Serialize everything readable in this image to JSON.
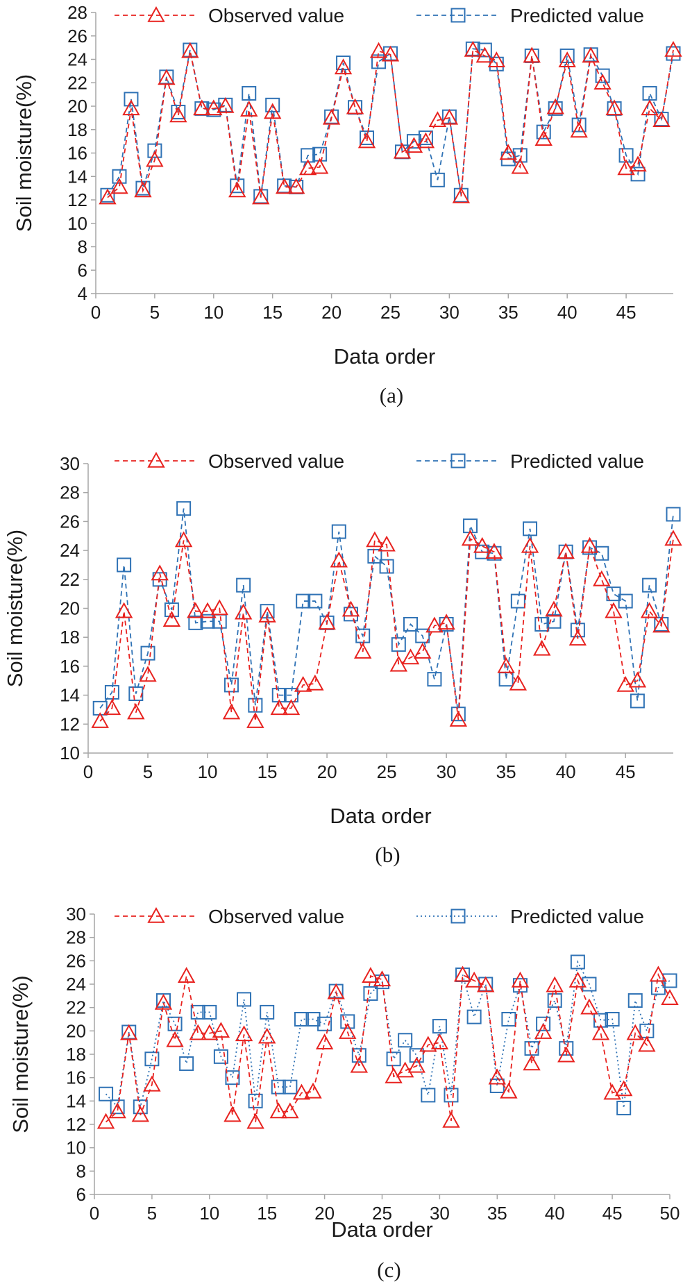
{
  "colors": {
    "observed": "#e8221f",
    "predicted": "#2f72b5",
    "axis": "#a6a6a6",
    "text": "#1a1a1a"
  },
  "chart_data": [
    {
      "panel": "(a)",
      "type": "line",
      "xlabel": "Data order",
      "ylabel": "Soil moisture(%)",
      "xlim": [
        0,
        49
      ],
      "ylim": [
        4,
        28
      ],
      "xticks": [
        0,
        5,
        10,
        15,
        20,
        25,
        30,
        35,
        40,
        45
      ],
      "yticks": [
        4,
        6,
        8,
        10,
        12,
        14,
        16,
        18,
        20,
        22,
        24,
        26,
        28
      ],
      "legend": "top",
      "x": [
        1,
        2,
        3,
        4,
        5,
        6,
        7,
        8,
        9,
        10,
        11,
        12,
        13,
        14,
        15,
        16,
        17,
        18,
        19,
        20,
        21,
        22,
        23,
        24,
        25,
        26,
        27,
        28,
        29,
        30,
        31,
        32,
        33,
        34,
        35,
        36,
        37,
        38,
        39,
        40,
        41,
        42,
        43,
        44,
        45,
        46,
        47,
        48,
        49
      ],
      "series": [
        {
          "name": "Observed value",
          "marker": "triangle",
          "line": "dashed",
          "values": [
            12.2,
            13.1,
            19.8,
            12.8,
            15.4,
            22.4,
            19.2,
            24.7,
            19.8,
            19.8,
            20.0,
            12.8,
            19.7,
            12.2,
            19.5,
            13.1,
            13.1,
            14.7,
            14.8,
            19.0,
            23.3,
            19.9,
            17.0,
            24.7,
            24.4,
            16.1,
            16.6,
            17.0,
            18.8,
            19.0,
            12.3,
            24.8,
            24.3,
            23.9,
            16.0,
            14.8,
            24.3,
            17.2,
            19.9,
            23.9,
            17.9,
            24.3,
            22.0,
            19.8,
            14.7,
            15.0,
            19.8,
            18.8,
            24.8
          ]
        },
        {
          "name": "Predicted value",
          "marker": "square",
          "line": "dashed",
          "values": [
            12.4,
            14.0,
            20.6,
            13.0,
            16.2,
            22.5,
            19.5,
            24.8,
            19.8,
            19.7,
            20.1,
            13.2,
            21.1,
            12.3,
            20.1,
            13.2,
            13.1,
            15.8,
            15.9,
            19.1,
            23.7,
            19.9,
            17.3,
            23.8,
            24.5,
            16.1,
            17.0,
            17.3,
            13.7,
            19.1,
            12.4,
            24.9,
            24.8,
            23.6,
            15.5,
            15.8,
            24.3,
            17.8,
            19.8,
            24.3,
            18.4,
            24.4,
            22.6,
            19.8,
            15.8,
            14.2,
            21.1,
            18.9,
            24.5
          ]
        }
      ]
    },
    {
      "panel": "(b)",
      "type": "line",
      "xlabel": "Data order",
      "ylabel": "Soil moisture(%)",
      "xlim": [
        0,
        49
      ],
      "ylim": [
        10,
        30
      ],
      "xticks": [
        0,
        5,
        10,
        15,
        20,
        25,
        30,
        35,
        40,
        45
      ],
      "yticks": [
        10,
        12,
        14,
        16,
        18,
        20,
        22,
        24,
        26,
        28,
        30
      ],
      "legend": "top",
      "x": [
        1,
        2,
        3,
        4,
        5,
        6,
        7,
        8,
        9,
        10,
        11,
        12,
        13,
        14,
        15,
        16,
        17,
        18,
        19,
        20,
        21,
        22,
        23,
        24,
        25,
        26,
        27,
        28,
        29,
        30,
        31,
        32,
        33,
        34,
        35,
        36,
        37,
        38,
        39,
        40,
        41,
        42,
        43,
        44,
        45,
        46,
        47,
        48,
        49
      ],
      "series": [
        {
          "name": "Observed value",
          "marker": "triangle",
          "line": "dashed",
          "values": [
            12.2,
            13.1,
            19.8,
            12.8,
            15.4,
            22.4,
            19.2,
            24.7,
            19.8,
            19.8,
            20.0,
            12.8,
            19.7,
            12.2,
            19.5,
            13.1,
            13.1,
            14.7,
            14.8,
            19.0,
            23.3,
            19.9,
            17.0,
            24.7,
            24.4,
            16.1,
            16.6,
            17.0,
            18.8,
            19.0,
            12.3,
            24.8,
            24.3,
            23.9,
            16.0,
            14.8,
            24.3,
            17.2,
            19.9,
            23.9,
            17.9,
            24.3,
            22.0,
            19.8,
            14.7,
            15.0,
            19.8,
            18.8,
            24.8
          ]
        },
        {
          "name": "Predicted value",
          "marker": "square",
          "line": "dashed",
          "values": [
            13.1,
            14.2,
            23.0,
            14.1,
            16.9,
            22.0,
            19.9,
            26.9,
            19.0,
            19.1,
            19.1,
            14.7,
            21.6,
            13.3,
            19.8,
            14.0,
            14.0,
            20.5,
            20.5,
            19.0,
            25.3,
            19.6,
            18.1,
            23.6,
            22.9,
            17.5,
            18.9,
            18.1,
            15.1,
            18.9,
            12.7,
            25.7,
            23.9,
            23.8,
            15.1,
            20.5,
            25.5,
            18.9,
            19.1,
            23.9,
            18.5,
            24.2,
            23.8,
            21.0,
            20.5,
            13.6,
            21.6,
            18.9,
            26.5
          ]
        }
      ]
    },
    {
      "panel": "(c)",
      "type": "line",
      "xlabel": "Data order",
      "ylabel": "Soil moisture(%)",
      "xlim": [
        0,
        50
      ],
      "ylim": [
        6,
        30
      ],
      "xticks": [
        0,
        5,
        10,
        15,
        20,
        25,
        30,
        35,
        40,
        45,
        50
      ],
      "yticks": [
        6,
        8,
        10,
        12,
        14,
        16,
        18,
        20,
        22,
        24,
        26,
        28,
        30
      ],
      "legend": "top",
      "x": [
        1,
        2,
        3,
        4,
        5,
        6,
        7,
        8,
        9,
        10,
        11,
        12,
        13,
        14,
        15,
        16,
        17,
        18,
        19,
        20,
        21,
        22,
        23,
        24,
        25,
        26,
        27,
        28,
        29,
        30,
        31,
        32,
        33,
        34,
        35,
        36,
        37,
        38,
        39,
        40,
        41,
        42,
        43,
        44,
        45,
        46,
        47,
        48,
        49,
        50
      ],
      "series": [
        {
          "name": "Observed value",
          "marker": "triangle",
          "line": "dashed",
          "values": [
            12.2,
            13.1,
            19.8,
            12.8,
            15.4,
            22.4,
            19.2,
            24.7,
            19.8,
            19.8,
            20.0,
            12.8,
            19.7,
            12.2,
            19.5,
            13.1,
            13.1,
            14.7,
            14.8,
            19.0,
            23.3,
            19.9,
            17.0,
            24.7,
            24.4,
            16.1,
            16.6,
            17.0,
            18.8,
            19.0,
            12.3,
            24.8,
            24.3,
            23.9,
            16.0,
            14.8,
            24.3,
            17.2,
            19.9,
            23.9,
            17.9,
            24.3,
            22.0,
            19.8,
            14.7,
            15.0,
            19.8,
            18.8,
            24.8,
            22.8
          ]
        },
        {
          "name": "Predicted value",
          "marker": "square",
          "line": "dotted",
          "values": [
            14.6,
            13.5,
            19.9,
            13.5,
            17.6,
            22.6,
            20.6,
            17.2,
            21.6,
            21.6,
            17.8,
            16.0,
            22.7,
            14.0,
            21.6,
            15.2,
            15.2,
            21.0,
            21.0,
            20.6,
            23.4,
            20.8,
            17.9,
            23.2,
            24.2,
            17.6,
            19.2,
            17.9,
            14.5,
            20.4,
            14.5,
            24.8,
            21.2,
            24.0,
            15.3,
            21.0,
            23.9,
            18.5,
            20.6,
            22.6,
            18.5,
            25.9,
            24.0,
            20.9,
            21.0,
            13.4,
            22.6,
            20.0,
            23.7,
            24.3
          ]
        }
      ]
    }
  ]
}
